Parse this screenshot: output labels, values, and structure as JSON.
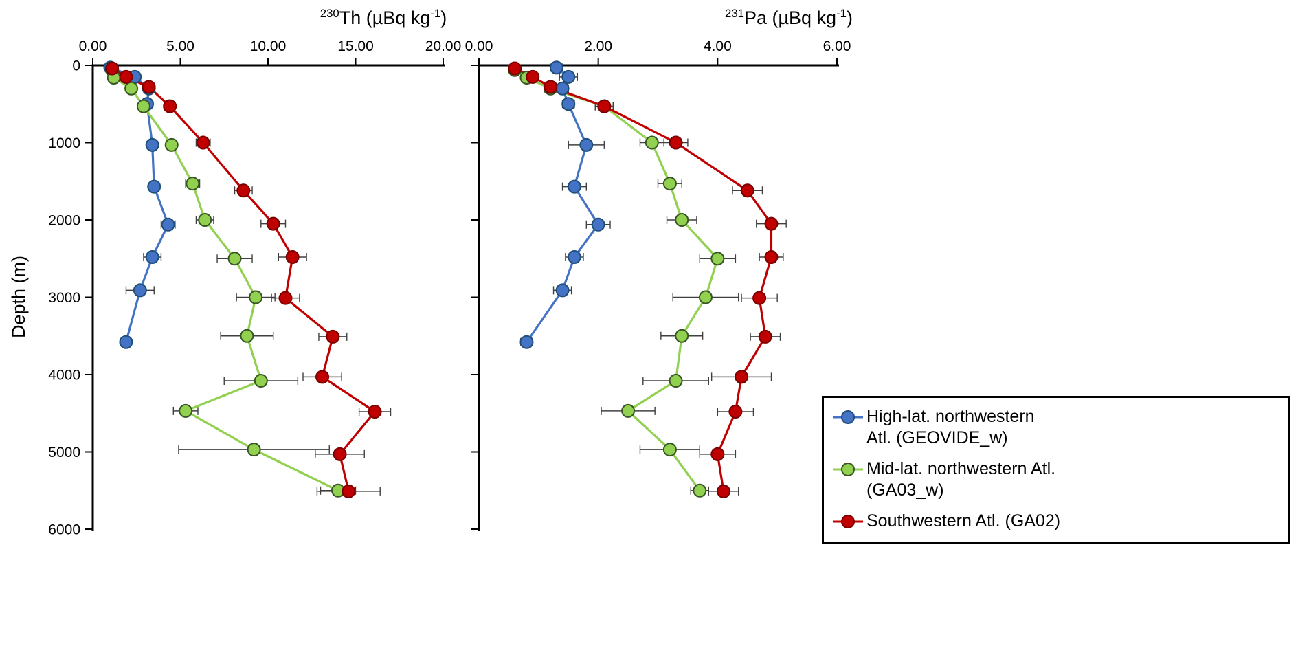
{
  "figure": {
    "background": "#ffffff",
    "depth_axis_label": "Depth (m)",
    "error_bar_color": "#404040"
  },
  "chart_data": [
    {
      "type": "line",
      "xlabel_text": "230Th (µBq kg-1)",
      "ylabel": "Depth (m)",
      "title": {
        "mass": "230",
        "element": "Th",
        "unit": " (µBq kg",
        "unit_sup": "-1",
        "unit_close": ")"
      },
      "xlim": [
        0,
        20
      ],
      "x_ticks": [
        0,
        5,
        10,
        15,
        20
      ],
      "x_tick_labels": [
        "0.00",
        "5.00",
        "10.00",
        "15.00",
        "20.00"
      ],
      "ylim": [
        0,
        6000
      ],
      "y_ticks": [
        0,
        1000,
        2000,
        3000,
        4000,
        5000,
        6000
      ],
      "y_tick_labels": [
        "0",
        "1000",
        "2000",
        "3000",
        "4000",
        "5000",
        "6000"
      ],
      "show_y_tick_labels": true,
      "grid": false,
      "y_axis_inverted": true,
      "series": [
        {
          "name": "High-lat. northwestern Atl. (GEOVIDE_w)",
          "color": "#4472C4",
          "edge": "#1F4E79",
          "points": [
            {
              "depth": 30,
              "value": 1.0,
              "err": 0.1
            },
            {
              "depth": 150,
              "value": 2.4,
              "err": 0.2
            },
            {
              "depth": 300,
              "value": 3.2,
              "err": 0.2
            },
            {
              "depth": 500,
              "value": 3.1,
              "err": 0.2
            },
            {
              "depth": 1030,
              "value": 3.4,
              "err": 0.3
            },
            {
              "depth": 1570,
              "value": 3.5,
              "err": 0.3
            },
            {
              "depth": 2060,
              "value": 4.3,
              "err": 0.4
            },
            {
              "depth": 2480,
              "value": 3.4,
              "err": 0.5
            },
            {
              "depth": 2910,
              "value": 2.7,
              "err": 0.8
            },
            {
              "depth": 3580,
              "value": 1.9,
              "err": 0.3
            }
          ]
        },
        {
          "name": "Mid-lat. northwestern Atl. (GA03_w)",
          "color": "#92D050",
          "edge": "#375623",
          "points": [
            {
              "depth": 60,
              "value": 1.1,
              "err": 0.1
            },
            {
              "depth": 160,
              "value": 1.2,
              "err": 0.1
            },
            {
              "depth": 300,
              "value": 2.2,
              "err": 0.2
            },
            {
              "depth": 530,
              "value": 2.9,
              "err": 0.2
            },
            {
              "depth": 1030,
              "value": 4.5,
              "err": 0.3
            },
            {
              "depth": 1530,
              "value": 5.7,
              "err": 0.4
            },
            {
              "depth": 2000,
              "value": 6.4,
              "err": 0.5
            },
            {
              "depth": 2500,
              "value": 8.1,
              "err": 1.0
            },
            {
              "depth": 3000,
              "value": 9.3,
              "err": 1.1
            },
            {
              "depth": 3500,
              "value": 8.8,
              "err": 1.5
            },
            {
              "depth": 4080,
              "value": 9.6,
              "err": 2.1
            },
            {
              "depth": 4470,
              "value": 5.3,
              "err": 0.7
            },
            {
              "depth": 4970,
              "value": 9.2,
              "err": 4.3
            },
            {
              "depth": 5500,
              "value": 14.0,
              "err": 1.0
            }
          ]
        },
        {
          "name": "Southwestern Atl. (GA02)",
          "color": "#C00000",
          "edge": "#7A0000",
          "points": [
            {
              "depth": 40,
              "value": 1.1,
              "err": 0.1
            },
            {
              "depth": 150,
              "value": 1.9,
              "err": 0.2
            },
            {
              "depth": 280,
              "value": 3.2,
              "err": 0.2
            },
            {
              "depth": 530,
              "value": 4.4,
              "err": 0.3
            },
            {
              "depth": 1000,
              "value": 6.3,
              "err": 0.4
            },
            {
              "depth": 1620,
              "value": 8.6,
              "err": 0.5
            },
            {
              "depth": 2050,
              "value": 10.3,
              "err": 0.7
            },
            {
              "depth": 2480,
              "value": 11.4,
              "err": 0.8
            },
            {
              "depth": 3010,
              "value": 11.0,
              "err": 0.8
            },
            {
              "depth": 3510,
              "value": 13.7,
              "err": 0.8
            },
            {
              "depth": 4030,
              "value": 13.1,
              "err": 1.1
            },
            {
              "depth": 4480,
              "value": 16.1,
              "err": 0.9
            },
            {
              "depth": 5030,
              "value": 14.1,
              "err": 1.4
            },
            {
              "depth": 5510,
              "value": 14.6,
              "err": 1.8
            }
          ]
        }
      ]
    },
    {
      "type": "line",
      "xlabel_text": "231Pa (µBq kg-1)",
      "ylabel": "Depth (m)",
      "title": {
        "mass": "231",
        "element": "Pa",
        "unit": " (µBq kg",
        "unit_sup": "-1",
        "unit_close": ")"
      },
      "xlim": [
        0,
        6
      ],
      "x_ticks": [
        0,
        2,
        4,
        6
      ],
      "x_tick_labels": [
        "0.00",
        "2.00",
        "4.00",
        "6.00"
      ],
      "ylim": [
        0,
        6000
      ],
      "y_ticks": [
        0,
        1000,
        2000,
        3000,
        4000,
        5000,
        6000
      ],
      "y_tick_labels": [
        "0",
        "1000",
        "2000",
        "3000",
        "4000",
        "5000",
        "6000"
      ],
      "show_y_tick_labels": false,
      "grid": false,
      "y_axis_inverted": true,
      "series": [
        {
          "name": "High-lat. northwestern Atl. (GEOVIDE_w)",
          "color": "#4472C4",
          "edge": "#1F4E79",
          "points": [
            {
              "depth": 30,
              "value": 1.3,
              "err": 0.1
            },
            {
              "depth": 150,
              "value": 1.5,
              "err": 0.15
            },
            {
              "depth": 300,
              "value": 1.4,
              "err": 0.1
            },
            {
              "depth": 500,
              "value": 1.5,
              "err": 0.1
            },
            {
              "depth": 1030,
              "value": 1.8,
              "err": 0.3
            },
            {
              "depth": 1570,
              "value": 1.6,
              "err": 0.2
            },
            {
              "depth": 2060,
              "value": 2.0,
              "err": 0.2
            },
            {
              "depth": 2480,
              "value": 1.6,
              "err": 0.15
            },
            {
              "depth": 2910,
              "value": 1.4,
              "err": 0.15
            },
            {
              "depth": 3580,
              "value": 0.8,
              "err": 0.1
            }
          ]
        },
        {
          "name": "Mid-lat. northwestern Atl. (GA03_w)",
          "color": "#92D050",
          "edge": "#375623",
          "points": [
            {
              "depth": 60,
              "value": 0.6,
              "err": 0.05
            },
            {
              "depth": 160,
              "value": 0.8,
              "err": 0.05
            },
            {
              "depth": 300,
              "value": 1.2,
              "err": 0.1
            },
            {
              "depth": 530,
              "value": 2.1,
              "err": 0.15
            },
            {
              "depth": 1000,
              "value": 2.9,
              "err": 0.2
            },
            {
              "depth": 1530,
              "value": 3.2,
              "err": 0.2
            },
            {
              "depth": 2000,
              "value": 3.4,
              "err": 0.25
            },
            {
              "depth": 2500,
              "value": 4.0,
              "err": 0.3
            },
            {
              "depth": 3000,
              "value": 3.8,
              "err": 0.55
            },
            {
              "depth": 3500,
              "value": 3.4,
              "err": 0.35
            },
            {
              "depth": 4080,
              "value": 3.3,
              "err": 0.55
            },
            {
              "depth": 4470,
              "value": 2.5,
              "err": 0.45
            },
            {
              "depth": 4970,
              "value": 3.2,
              "err": 0.5
            },
            {
              "depth": 5500,
              "value": 3.7,
              "err": 0.15
            }
          ]
        },
        {
          "name": "Southwestern Atl. (GA02)",
          "color": "#C00000",
          "edge": "#7A0000",
          "points": [
            {
              "depth": 40,
              "value": 0.6,
              "err": 0.05
            },
            {
              "depth": 150,
              "value": 0.9,
              "err": 0.1
            },
            {
              "depth": 280,
              "value": 1.2,
              "err": 0.1
            },
            {
              "depth": 530,
              "value": 2.1,
              "err": 0.15
            },
            {
              "depth": 1000,
              "value": 3.3,
              "err": 0.2
            },
            {
              "depth": 1620,
              "value": 4.5,
              "err": 0.25
            },
            {
              "depth": 2050,
              "value": 4.9,
              "err": 0.25
            },
            {
              "depth": 2480,
              "value": 4.9,
              "err": 0.2
            },
            {
              "depth": 3010,
              "value": 4.7,
              "err": 0.3
            },
            {
              "depth": 3510,
              "value": 4.8,
              "err": 0.25
            },
            {
              "depth": 4030,
              "value": 4.4,
              "err": 0.5
            },
            {
              "depth": 4480,
              "value": 4.3,
              "err": 0.3
            },
            {
              "depth": 5030,
              "value": 4.0,
              "err": 0.3
            },
            {
              "depth": 5510,
              "value": 4.1,
              "err": 0.25
            }
          ]
        }
      ]
    }
  ],
  "legend": {
    "position": "bottom-right",
    "items": [
      {
        "lines": [
          "High-lat. northwestern",
          "Atl. (GEOVIDE_w)"
        ],
        "full_label": "High-lat. northwestern Atl. (GEOVIDE_w)",
        "color": "#4472C4",
        "edge": "#1F4E79"
      },
      {
        "lines": [
          "Mid-lat. northwestern Atl.",
          "(GA03_w)"
        ],
        "full_label": "Mid-lat. northwestern Atl. (GA03_w)",
        "color": "#92D050",
        "edge": "#375623"
      },
      {
        "lines": [
          "Southwestern Atl. (GA02)"
        ],
        "full_label": "Southwestern Atl. (GA02)",
        "color": "#C00000",
        "edge": "#7A0000"
      }
    ]
  }
}
